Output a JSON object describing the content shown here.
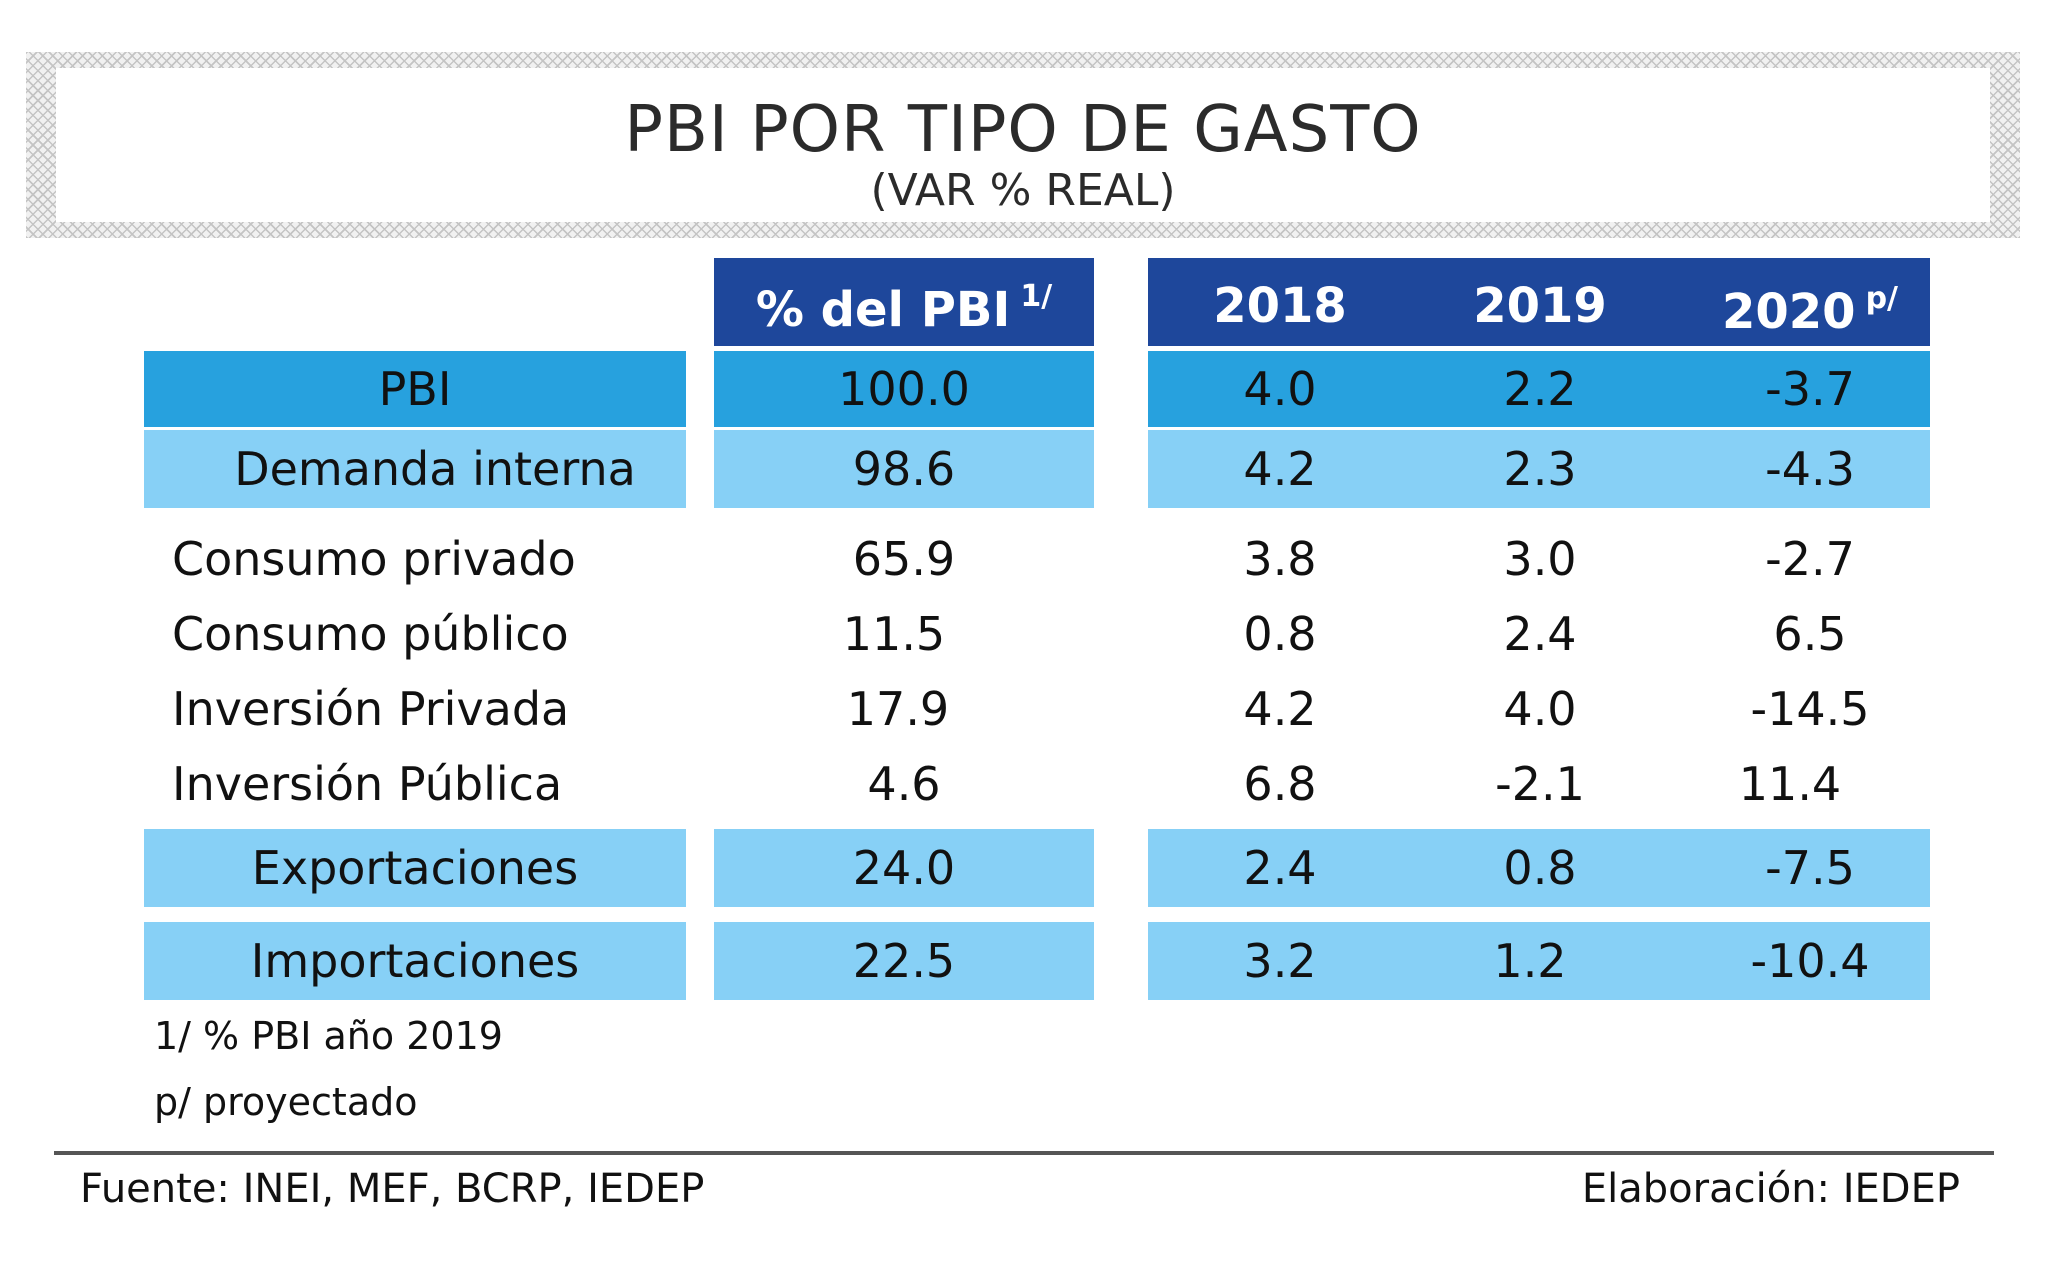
{
  "title": {
    "main": "PBI POR TIPO DE GASTO",
    "sub": "(VAR % REAL)"
  },
  "header": {
    "share_label": "% del PBI",
    "share_sup": "1/",
    "years": [
      "2018",
      "2019",
      "2020"
    ],
    "year_sups": [
      "",
      "",
      "p/"
    ]
  },
  "rows": [
    {
      "label": "PBI",
      "share": "100.0",
      "v2018": "4.0",
      "v2019": "2.2",
      "v2020": "-3.7"
    },
    {
      "label": "Demanda interna",
      "share": "98.6",
      "v2018": "4.2",
      "v2019": "2.3",
      "v2020": "-4.3"
    },
    {
      "label": "Consumo privado",
      "share": "65.9",
      "v2018": "3.8",
      "v2019": "3.0",
      "v2020": "-2.7"
    },
    {
      "label": "Consumo público",
      "share": "11.5",
      "v2018": "0.8",
      "v2019": "2.4",
      "v2020": "6.5"
    },
    {
      "label": "Inversión Privada",
      "share": "17.9",
      "v2018": "4.2",
      "v2019": "4.0",
      "v2020": "-14.5"
    },
    {
      "label": "Inversión Pública",
      "share": "4.6",
      "v2018": "6.8",
      "v2019": "-2.1",
      "v2020": "11.4"
    },
    {
      "label": "Exportaciones",
      "share": "24.0",
      "v2018": "2.4",
      "v2019": "0.8",
      "v2020": "-7.5"
    },
    {
      "label": "Importaciones",
      "share": "22.5",
      "v2018": "3.2",
      "v2019": "1.2",
      "v2020": "-10.4"
    }
  ],
  "notes": [
    "1/ % PBI año 2019",
    "p/ proyectado"
  ],
  "footer": {
    "source": "Fuente: INEI, MEF, BCRP, IEDEP",
    "credit": "Elaboración: IEDEP"
  },
  "colors": {
    "header": "#1e479b",
    "pbi_row": "#27a1de",
    "highlight_row": "#87d0f6"
  },
  "chart_data": {
    "type": "table",
    "title": "PBI POR TIPO DE GASTO",
    "subtitle": "(VAR % REAL)",
    "columns": [
      "% del PBI 1/",
      "2018",
      "2019",
      "2020 p/"
    ],
    "row_labels": [
      "PBI",
      "Demanda interna",
      "Consumo privado",
      "Consumo público",
      "Inversión Privada",
      "Inversión Pública",
      "Exportaciones",
      "Importaciones"
    ],
    "series": [
      {
        "name": "% del PBI",
        "values": [
          100.0,
          98.6,
          65.9,
          11.5,
          17.9,
          4.6,
          24.0,
          22.5
        ]
      },
      {
        "name": "2018",
        "values": [
          4.0,
          4.2,
          3.8,
          0.8,
          4.2,
          6.8,
          2.4,
          3.2
        ]
      },
      {
        "name": "2019",
        "values": [
          2.2,
          2.3,
          3.0,
          2.4,
          4.0,
          -2.1,
          0.8,
          1.2
        ]
      },
      {
        "name": "2020",
        "values": [
          -3.7,
          -4.3,
          -2.7,
          6.5,
          -14.5,
          11.4,
          -7.5,
          -10.4
        ]
      }
    ]
  }
}
